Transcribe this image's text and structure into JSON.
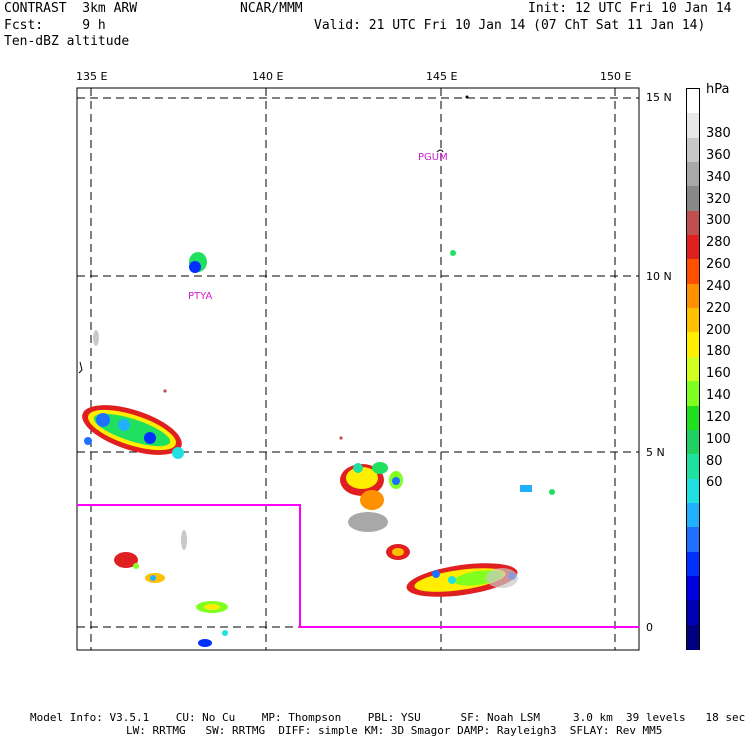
{
  "header": {
    "left_line1": "CONTRAST  3km ARW",
    "left_line2": "Fcst:     9 h",
    "left_line3": "Ten-dBZ altitude",
    "center": "NCAR/MMM",
    "init": "Init: 12 UTC Fri 10 Jan 14",
    "valid": "Valid: 21 UTC Fri 10 Jan 14 (07 ChT Sat 11 Jan 14)"
  },
  "axes": {
    "lon_labels": [
      "135 E",
      "140 E",
      "145 E",
      "150 E"
    ],
    "lat_labels": [
      "15 N",
      "10 N",
      "5 N",
      "0"
    ]
  },
  "places": {
    "pgum": "PGUM",
    "ptya": "PTYA"
  },
  "colorbar": {
    "unit": "hPa",
    "labels": [
      "380",
      "360",
      "340",
      "320",
      "300",
      "280",
      "260",
      "240",
      "220",
      "200",
      "180",
      "160",
      "140",
      "120",
      "100",
      "80",
      "60"
    ],
    "colors": [
      "#ffffff",
      "#e8e8e8",
      "#c8c8c8",
      "#a8a8a8",
      "#888888",
      "#c05050",
      "#e02020",
      "#ff5000",
      "#ff9000",
      "#ffc000",
      "#ffee00",
      "#d0ff20",
      "#80ff20",
      "#20e020",
      "#20d060",
      "#20e0a0",
      "#20e0e0",
      "#20b0ff",
      "#2070ff",
      "#0030ff",
      "#0000e0",
      "#0000b0",
      "#000080"
    ]
  },
  "footer": {
    "line1": "Model Info: V3.5.1    CU: No Cu    MP: Thompson    PBL: YSU      SF: Noah LSM     3.0 km  39 levels   18 sec",
    "line2": "LW: RRTMG   SW: RRTMG  DIFF: simple KM: 3D Smagor DAMP: Rayleigh3  SFLAY: Rev MM5"
  },
  "colors": {
    "boundary": "#ff00ff",
    "grid": "#000000"
  }
}
